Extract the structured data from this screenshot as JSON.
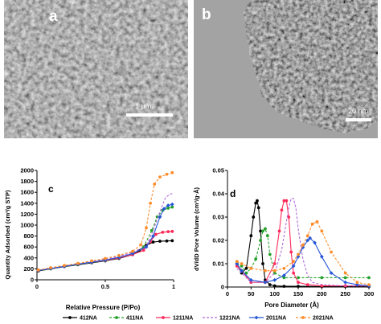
{
  "images": {
    "a": {
      "label": "a",
      "scale_bar": "1 μm"
    },
    "b": {
      "label": "b",
      "scale_bar": "20 nm"
    }
  },
  "colors": {
    "412NA": "#000000",
    "411NA": "#23a12a",
    "1211NA": "#ff2a5a",
    "1221NA": "#b06ad8",
    "2011NA": "#2656d8",
    "2021NA": "#ff8c2a"
  },
  "chart_data": [
    {
      "type": "line",
      "panel_label": "c",
      "xlabel": "Relative Pressure (P/Po)",
      "ylabel": "Quantity Adsorbed (cm³/g STP)",
      "xlim": [
        0,
        1
      ],
      "ylim": [
        0,
        2000
      ],
      "x_ticks": [
        "0",
        "0.5",
        "1"
      ],
      "y_ticks": [
        "0",
        "200",
        "400",
        "600",
        "800",
        "1000",
        "1200",
        "1400",
        "1600",
        "1800",
        "2000"
      ],
      "grid": false,
      "series": [
        {
          "name": "412NA",
          "marker": "circle",
          "line": "solid",
          "x": [
            0.01,
            0.1,
            0.2,
            0.3,
            0.4,
            0.5,
            0.6,
            0.7,
            0.75,
            0.8,
            0.85,
            0.9,
            0.95,
            0.99
          ],
          "y": [
            160,
            200,
            240,
            275,
            310,
            345,
            390,
            460,
            530,
            630,
            690,
            705,
            710,
            715
          ]
        },
        {
          "name": "411NA",
          "marker": "circle",
          "line": "dash",
          "x": [
            0.01,
            0.1,
            0.2,
            0.3,
            0.4,
            0.5,
            0.6,
            0.7,
            0.78,
            0.84,
            0.88,
            0.92,
            0.96,
            0.99
          ],
          "y": [
            165,
            200,
            240,
            280,
            315,
            350,
            400,
            470,
            600,
            900,
            1150,
            1270,
            1310,
            1330
          ]
        },
        {
          "name": "1211NA",
          "marker": "circle",
          "line": "solid",
          "x": [
            0.01,
            0.1,
            0.2,
            0.3,
            0.4,
            0.5,
            0.6,
            0.7,
            0.78,
            0.83,
            0.87,
            0.92,
            0.96,
            0.99
          ],
          "y": [
            170,
            205,
            245,
            285,
            320,
            355,
            400,
            460,
            540,
            700,
            830,
            870,
            880,
            885
          ]
        },
        {
          "name": "1221NA",
          "marker": "none",
          "line": "dash",
          "x": [
            0.01,
            0.1,
            0.2,
            0.3,
            0.4,
            0.5,
            0.6,
            0.7,
            0.8,
            0.85,
            0.9,
            0.94,
            0.97,
            0.99
          ],
          "y": [
            175,
            215,
            255,
            295,
            335,
            375,
            430,
            500,
            620,
            900,
            1250,
            1500,
            1560,
            1580
          ]
        },
        {
          "name": "2011NA",
          "marker": "diamond",
          "line": "solid",
          "x": [
            0.01,
            0.1,
            0.2,
            0.3,
            0.4,
            0.5,
            0.6,
            0.7,
            0.8,
            0.85,
            0.9,
            0.93,
            0.96,
            0.99
          ],
          "y": [
            170,
            205,
            245,
            285,
            320,
            360,
            410,
            480,
            600,
            800,
            1150,
            1300,
            1360,
            1380
          ]
        },
        {
          "name": "2021NA",
          "marker": "circle",
          "line": "dash",
          "x": [
            0.01,
            0.1,
            0.2,
            0.3,
            0.4,
            0.5,
            0.6,
            0.7,
            0.76,
            0.8,
            0.83,
            0.86,
            0.9,
            0.95,
            0.99
          ],
          "y": [
            180,
            220,
            262,
            300,
            345,
            390,
            445,
            520,
            640,
            950,
            1400,
            1750,
            1880,
            1930,
            1960
          ]
        }
      ]
    },
    {
      "type": "line",
      "panel_label": "d",
      "xlabel": "Pore Diameter (Å)",
      "ylabel": "dV/dD Pore Volume (cm³/g·Å)",
      "xlim": [
        0,
        300
      ],
      "ylim": [
        0,
        0.05
      ],
      "x_ticks": [
        "0",
        "50",
        "100",
        "150",
        "200",
        "250",
        "300"
      ],
      "y_ticks": [
        "0",
        "0.01",
        "0.02",
        "0.03",
        "0.04",
        "0.05"
      ],
      "grid": false,
      "series": [
        {
          "name": "412NA",
          "marker": "circle",
          "line": "solid",
          "x": [
            20,
            30,
            40,
            50,
            55,
            60,
            63,
            66,
            70,
            75,
            80,
            90,
            100,
            120,
            150,
            200,
            250,
            300
          ],
          "y": [
            0.01,
            0.006,
            0.008,
            0.022,
            0.03,
            0.036,
            0.037,
            0.034,
            0.024,
            0.01,
            0.003,
            0.001,
            0.0005,
            0.0003,
            0.0003,
            0.0002,
            0.0002,
            0.0002
          ]
        },
        {
          "name": "411NA",
          "marker": "circle",
          "line": "dash",
          "x": [
            20,
            30,
            40,
            50,
            60,
            70,
            75,
            80,
            85,
            90,
            100,
            120,
            150,
            200,
            250,
            300
          ],
          "y": [
            0.01,
            0.009,
            0.006,
            0.008,
            0.012,
            0.02,
            0.024,
            0.025,
            0.022,
            0.014,
            0.006,
            0.004,
            0.004,
            0.004,
            0.004,
            0.004
          ]
        },
        {
          "name": "1211NA",
          "marker": "circle",
          "line": "solid",
          "x": [
            20,
            30,
            50,
            80,
            100,
            110,
            115,
            120,
            125,
            130,
            135,
            140,
            150,
            170,
            200,
            250,
            300
          ],
          "y": [
            0.009,
            0.007,
            0.002,
            0.002,
            0.01,
            0.024,
            0.033,
            0.037,
            0.037,
            0.03,
            0.015,
            0.006,
            0.002,
            0.001,
            0.0005,
            0.0005,
            0.0005
          ]
        },
        {
          "name": "1221NA",
          "marker": "none",
          "line": "dash",
          "x": [
            20,
            30,
            50,
            80,
            100,
            115,
            125,
            130,
            135,
            140,
            145,
            150,
            160,
            170,
            180,
            200,
            250,
            300
          ],
          "y": [
            0.008,
            0.006,
            0.002,
            0.002,
            0.006,
            0.016,
            0.028,
            0.034,
            0.038,
            0.038,
            0.034,
            0.025,
            0.012,
            0.005,
            0.002,
            0.001,
            0.0005,
            0.0005
          ]
        },
        {
          "name": "2011NA",
          "marker": "diamond",
          "line": "solid",
          "x": [
            20,
            30,
            50,
            80,
            100,
            120,
            140,
            150,
            160,
            170,
            175,
            185,
            200,
            220,
            250,
            275,
            300
          ],
          "y": [
            0.01,
            0.007,
            0.003,
            0.002,
            0.003,
            0.005,
            0.009,
            0.013,
            0.017,
            0.02,
            0.021,
            0.019,
            0.013,
            0.006,
            0.002,
            0.001,
            0.0005
          ]
        },
        {
          "name": "2021NA",
          "marker": "circle",
          "line": "dash",
          "x": [
            20,
            30,
            50,
            80,
            100,
            120,
            140,
            150,
            160,
            170,
            180,
            190,
            200,
            220,
            250,
            275,
            300
          ],
          "y": [
            0.011,
            0.01,
            0.008,
            0.007,
            0.007,
            0.008,
            0.011,
            0.014,
            0.018,
            0.022,
            0.027,
            0.028,
            0.024,
            0.015,
            0.006,
            0.002,
            0.001
          ]
        }
      ]
    }
  ]
}
